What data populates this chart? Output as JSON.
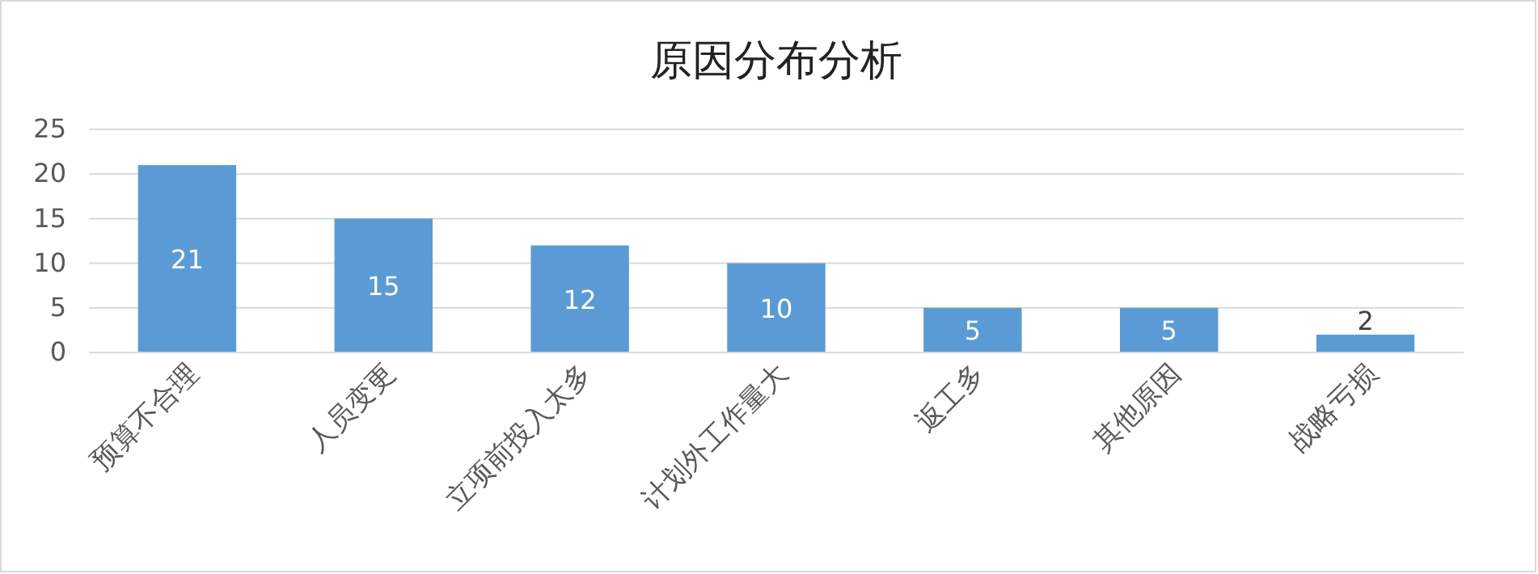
{
  "chart_data": {
    "type": "bar",
    "title": "原因分布分析",
    "categories": [
      "预算不合理",
      "人员变更",
      "立项前投入太多",
      "计划外工作量大",
      "返工多",
      "其他原因",
      "战略亏损"
    ],
    "values": [
      21,
      15,
      12,
      10,
      5,
      5,
      2
    ],
    "color": "#5b9bd5",
    "ylim": [
      0,
      25
    ],
    "yticks": [
      0,
      5,
      10,
      15,
      20,
      25
    ],
    "grid": "y",
    "data_labels": true
  }
}
